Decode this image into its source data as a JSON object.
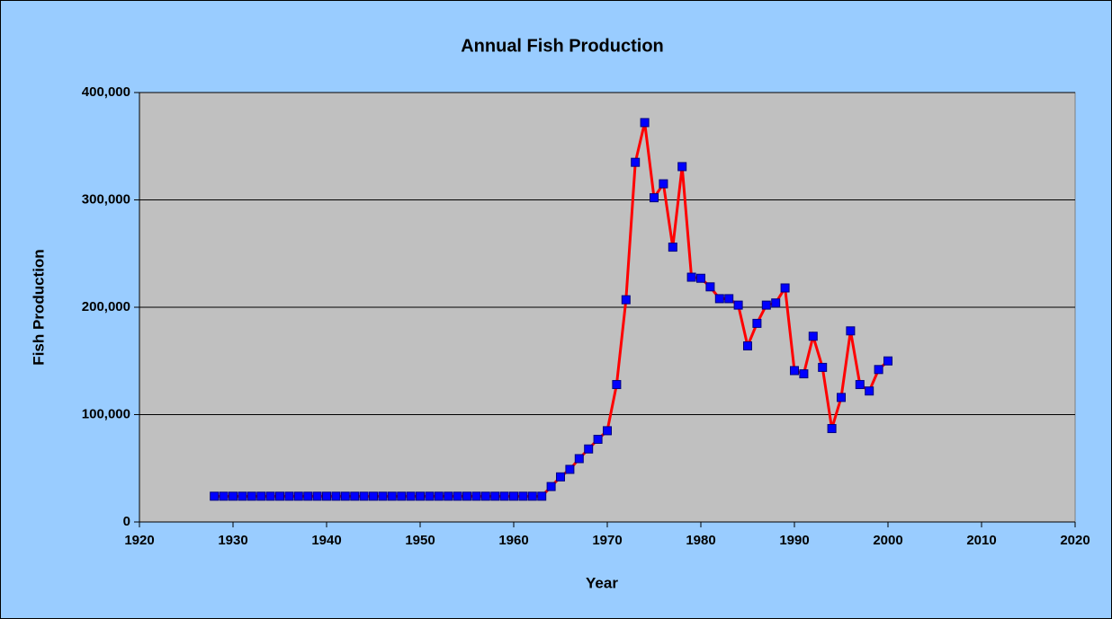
{
  "chart_data": {
    "type": "line",
    "title": "Annual Fish Production",
    "x_label": "Year",
    "y_label": "Fish Production",
    "x": [
      1928,
      1929,
      1930,
      1931,
      1932,
      1933,
      1934,
      1935,
      1936,
      1937,
      1938,
      1939,
      1940,
      1941,
      1942,
      1943,
      1944,
      1945,
      1946,
      1947,
      1948,
      1949,
      1950,
      1951,
      1952,
      1953,
      1954,
      1955,
      1956,
      1957,
      1958,
      1959,
      1960,
      1961,
      1962,
      1963,
      1964,
      1965,
      1966,
      1967,
      1968,
      1969,
      1970,
      1971,
      1972,
      1973,
      1974,
      1975,
      1976,
      1977,
      1978,
      1979,
      1980,
      1981,
      1982,
      1983,
      1984,
      1985,
      1986,
      1987,
      1988,
      1989,
      1990,
      1991,
      1992,
      1993,
      1994,
      1995,
      1996,
      1997,
      1998,
      1999,
      2000
    ],
    "values": [
      24000,
      24000,
      24000,
      24000,
      24000,
      24000,
      24000,
      24000,
      24000,
      24000,
      24000,
      24000,
      24000,
      24000,
      24000,
      24000,
      24000,
      24000,
      24000,
      24000,
      24000,
      24000,
      24000,
      24000,
      24000,
      24000,
      24000,
      24000,
      24000,
      24000,
      24000,
      24000,
      24000,
      24000,
      24000,
      24000,
      33000,
      42000,
      49000,
      59000,
      68000,
      77000,
      85000,
      128000,
      207000,
      335000,
      372000,
      302000,
      315000,
      256000,
      331000,
      228000,
      227000,
      219000,
      208000,
      208000,
      202000,
      164000,
      185000,
      202000,
      204000,
      218000,
      141000,
      138000,
      173000,
      144000,
      87000,
      116000,
      178000,
      128000,
      122000,
      142000,
      150000
    ],
    "color": "#ff0000",
    "marker_color": "#0000ff",
    "xlim": [
      1920,
      2020
    ],
    "xticks": [
      1920,
      1930,
      1940,
      1950,
      1960,
      1970,
      1980,
      1990,
      2000,
      2010,
      2020
    ],
    "ylim": [
      0,
      400000
    ],
    "yticks": [
      0,
      {
        "value": 100000,
        "label": "100,000"
      },
      {
        "value": 200000,
        "label": "200,000"
      },
      {
        "value": 300000,
        "label": "300,000"
      },
      {
        "value": 400000,
        "label": "400,000"
      }
    ],
    "grid": true
  }
}
